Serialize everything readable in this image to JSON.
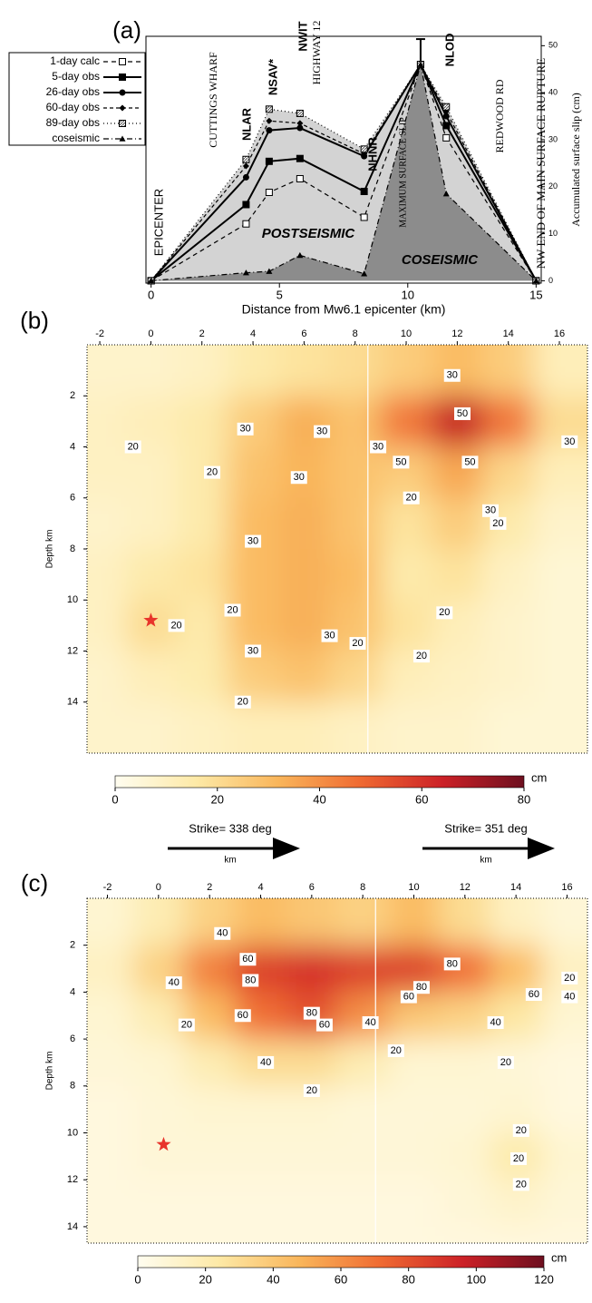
{
  "chart_data": [
    {
      "type": "line",
      "label": "(a)",
      "x": [
        0,
        3.7,
        4.6,
        5.8,
        8.3,
        10.5,
        11.5,
        15
      ],
      "xlim": [
        -0.2,
        15.2
      ],
      "xticks": [
        0,
        5,
        10,
        15
      ],
      "ylim": [
        -0.5,
        52
      ],
      "yticks": [
        0,
        10,
        20,
        30,
        40,
        50
      ],
      "x_label": "Distance from Mw6.1 epicenter (km)",
      "y_label": "Accumulated surface slip (cm)",
      "series": [
        {
          "name": "1-day calc",
          "color": "#000000",
          "marker": "open-square",
          "dash": "5,4",
          "values": [
            0,
            12.1,
            18.8,
            21.7,
            13.5,
            46,
            30.4,
            0
          ]
        },
        {
          "name": "5-day obs",
          "color": "#000000",
          "marker": "square",
          "dash": "none",
          "values": [
            0,
            16.2,
            25.4,
            26,
            19,
            46,
            33,
            0
          ]
        },
        {
          "name": "26-day obs",
          "color": "#000000",
          "marker": "circle",
          "dash": "none",
          "values": [
            0,
            22,
            32,
            32.5,
            26.5,
            46,
            35,
            0
          ]
        },
        {
          "name": "60-day obs",
          "color": "#000000",
          "marker": "diamond",
          "dash": "4,3",
          "values": [
            0,
            24.4,
            34,
            33.5,
            27,
            46,
            36,
            0
          ]
        },
        {
          "name": "89-day obs",
          "color": "#000000",
          "marker": "hatched-square",
          "dash": "1,3",
          "values": [
            0,
            25.8,
            36.5,
            35.6,
            28,
            46,
            37,
            0
          ]
        },
        {
          "name": "coseismic",
          "color": "#000000",
          "marker": "triangle",
          "dash": "6,3,1,3",
          "values": [
            0,
            1.7,
            2,
            5.4,
            1.5,
            46,
            18.5,
            0
          ]
        }
      ],
      "stations": [
        "NLAR",
        "NSAV*",
        "NWIT",
        "NHNR",
        "NLOD"
      ],
      "place_labels": [
        "EPICENTER",
        "CUTTINGS WHARF",
        "HIGHWAY 12",
        "MAXIMUM SURFACE SLIP",
        "REDWOOD RD",
        "NW  END OF MAIN SURFACE RUPTURE"
      ],
      "region_labels": [
        "POSTSEISMIC",
        "COSEISMIC"
      ]
    },
    {
      "type": "heatmap",
      "label": "(b)",
      "x": [
        -2,
        0,
        2,
        4,
        6,
        8,
        10,
        12,
        14,
        16
      ],
      "depth": [
        1,
        3,
        5,
        7,
        9,
        11,
        13,
        15
      ],
      "z": [
        [
          8,
          8,
          10,
          15,
          18,
          20,
          25,
          30,
          25,
          12
        ],
        [
          10,
          12,
          15,
          25,
          33,
          28,
          45,
          65,
          45,
          20
        ],
        [
          10,
          10,
          15,
          28,
          32,
          28,
          25,
          35,
          22,
          12
        ],
        [
          8,
          10,
          15,
          30,
          33,
          28,
          18,
          25,
          15,
          8
        ],
        [
          10,
          15,
          18,
          30,
          33,
          30,
          15,
          18,
          10,
          6
        ],
        [
          10,
          20,
          15,
          30,
          33,
          28,
          18,
          12,
          8,
          6
        ],
        [
          8,
          12,
          14,
          25,
          28,
          22,
          12,
          10,
          8,
          6
        ],
        [
          8,
          8,
          10,
          12,
          12,
          10,
          8,
          8,
          6,
          6
        ]
      ],
      "xlim": [
        -2.5,
        17.1
      ],
      "xticks": [
        -2,
        0,
        2,
        4,
        6,
        8,
        10,
        12,
        14,
        16
      ],
      "ylim": [
        0,
        16
      ],
      "yticks": [
        2,
        4,
        6,
        8,
        10,
        12,
        14
      ],
      "y_label": "Depth km",
      "fault_break": 8.5,
      "epicenter": [
        0,
        10.8
      ],
      "contour_levels": [
        20,
        30,
        50
      ],
      "colormap": [
        "#fffdf0",
        "#fde9a6",
        "#f9b55a",
        "#ef6a32",
        "#cc2127",
        "#6d0f1f"
      ],
      "colorbar": {
        "lim": [
          0,
          80
        ],
        "ticks": [
          0,
          20,
          40,
          60,
          80
        ],
        "unit": "cm"
      },
      "strike_labels": [
        "Strike= 338 deg",
        "Strike= 351 deg"
      ],
      "strike_unit": "km"
    },
    {
      "type": "heatmap",
      "label": "(c)",
      "x": [
        -2,
        0,
        2,
        4,
        6,
        8,
        10,
        12,
        14,
        16
      ],
      "depth": [
        1,
        3,
        5,
        7,
        9,
        11,
        13,
        15
      ],
      "z": [
        [
          10,
          20,
          35,
          45,
          40,
          35,
          45,
          30,
          15,
          8
        ],
        [
          15,
          35,
          65,
          85,
          90,
          85,
          85,
          70,
          45,
          15
        ],
        [
          10,
          20,
          45,
          70,
          80,
          60,
          40,
          35,
          25,
          10
        ],
        [
          8,
          10,
          20,
          30,
          30,
          20,
          10,
          10,
          8,
          6
        ],
        [
          6,
          8,
          10,
          10,
          10,
          8,
          8,
          8,
          10,
          6
        ],
        [
          6,
          8,
          8,
          8,
          8,
          8,
          8,
          10,
          22,
          10
        ],
        [
          6,
          6,
          6,
          6,
          6,
          6,
          6,
          8,
          12,
          8
        ],
        [
          6,
          6,
          6,
          6,
          6,
          6,
          6,
          6,
          6,
          6
        ]
      ],
      "xlim": [
        -2.8,
        16.8
      ],
      "xticks": [
        -2,
        0,
        2,
        4,
        6,
        8,
        10,
        12,
        14,
        16
      ],
      "ylim": [
        0,
        14.7
      ],
      "yticks": [
        2,
        4,
        6,
        8,
        10,
        12,
        14
      ],
      "y_label": "Depth km",
      "fault_break": 8.5,
      "epicenter": [
        0.2,
        10.5
      ],
      "contour_levels": [
        20,
        40,
        60,
        80
      ],
      "colormap": [
        "#fffdf0",
        "#fde9a6",
        "#f9b55a",
        "#ef6a32",
        "#cc2127",
        "#6d0f1f"
      ],
      "colorbar": {
        "lim": [
          0,
          120
        ],
        "ticks": [
          0,
          20,
          40,
          60,
          80,
          100,
          120
        ],
        "unit": "cm"
      }
    }
  ]
}
